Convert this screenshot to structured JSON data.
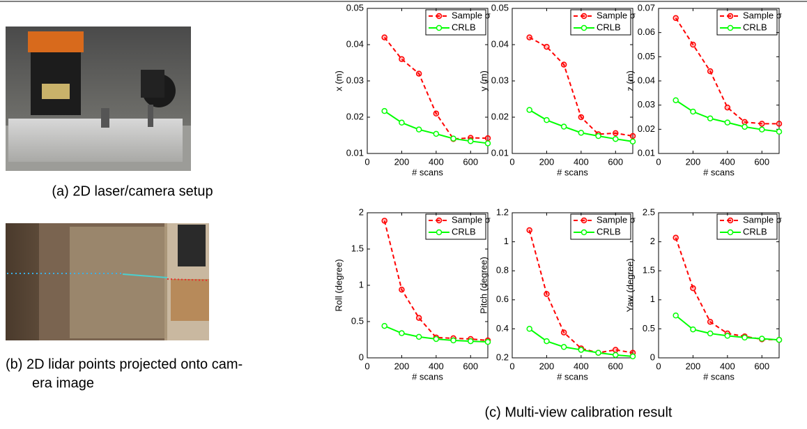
{
  "captions": {
    "a": "(a)  2D laser/camera setup",
    "b": [
      "(b)  2D lidar points projected onto cam-",
      "era image"
    ],
    "c": "(c)  Multi-view calibration result"
  },
  "chart_data": [
    {
      "type": "line",
      "ylabel": "x (m)",
      "xlabel": "# scans",
      "x": [
        100,
        200,
        300,
        400,
        500,
        600,
        700
      ],
      "xlim": [
        0,
        700
      ],
      "xticks": [
        0,
        200,
        400,
        600
      ],
      "ylim": [
        0.01,
        0.05
      ],
      "yticks": [
        0.01,
        0.02,
        0.03,
        0.04,
        0.05
      ],
      "series": [
        {
          "name": "Sample σ",
          "color": "#ff0000",
          "dashed": true,
          "values": [
            0.042,
            0.036,
            0.032,
            0.021,
            0.014,
            0.0143,
            0.0142
          ]
        },
        {
          "name": "CRLB",
          "color": "#00ff00",
          "dashed": false,
          "values": [
            0.0217,
            0.0185,
            0.0166,
            0.0154,
            0.0141,
            0.0134,
            0.0128
          ]
        }
      ]
    },
    {
      "type": "line",
      "ylabel": "y (m)",
      "xlabel": "# scans",
      "x": [
        100,
        200,
        300,
        400,
        500,
        600,
        700
      ],
      "xlim": [
        0,
        700
      ],
      "xticks": [
        0,
        200,
        400,
        600
      ],
      "ylim": [
        0.01,
        0.05
      ],
      "yticks": [
        0.01,
        0.02,
        0.03,
        0.04,
        0.05
      ],
      "series": [
        {
          "name": "Sample σ",
          "color": "#ff0000",
          "dashed": true,
          "values": [
            0.042,
            0.0394,
            0.0345,
            0.02,
            0.0153,
            0.0156,
            0.0148
          ]
        },
        {
          "name": "CRLB",
          "color": "#00ff00",
          "dashed": false,
          "values": [
            0.022,
            0.0192,
            0.0174,
            0.0157,
            0.0148,
            0.014,
            0.0133
          ]
        }
      ]
    },
    {
      "type": "line",
      "ylabel": "z (m)",
      "xlabel": "# scans",
      "x": [
        100,
        200,
        300,
        400,
        500,
        600,
        700
      ],
      "xlim": [
        0,
        700
      ],
      "xticks": [
        0,
        200,
        400,
        600
      ],
      "ylim": [
        0.01,
        0.07
      ],
      "yticks": [
        0.01,
        0.02,
        0.03,
        0.04,
        0.05,
        0.06,
        0.07
      ],
      "series": [
        {
          "name": "Sample σ",
          "color": "#ff0000",
          "dashed": true,
          "values": [
            0.066,
            0.055,
            0.044,
            0.029,
            0.023,
            0.0223,
            0.0223
          ]
        },
        {
          "name": "CRLB",
          "color": "#00ff00",
          "dashed": false,
          "values": [
            0.032,
            0.0273,
            0.0245,
            0.0228,
            0.021,
            0.0199,
            0.019
          ]
        }
      ]
    },
    {
      "type": "line",
      "ylabel": "Roll (degree)",
      "xlabel": "# scans",
      "x": [
        100,
        200,
        300,
        400,
        500,
        600,
        700
      ],
      "xlim": [
        0,
        700
      ],
      "xticks": [
        0,
        200,
        400,
        600
      ],
      "ylim": [
        0,
        2
      ],
      "yticks": [
        0,
        0.5,
        1,
        1.5,
        2
      ],
      "series": [
        {
          "name": "Sample σ",
          "color": "#ff0000",
          "dashed": true,
          "values": [
            1.89,
            0.94,
            0.55,
            0.28,
            0.27,
            0.26,
            0.24
          ]
        },
        {
          "name": "CRLB",
          "color": "#00ff00",
          "dashed": false,
          "values": [
            0.44,
            0.34,
            0.29,
            0.26,
            0.24,
            0.23,
            0.22
          ]
        }
      ]
    },
    {
      "type": "line",
      "ylabel": "Pitch (degree)",
      "xlabel": "# scans",
      "x": [
        100,
        200,
        300,
        400,
        500,
        600,
        700
      ],
      "xlim": [
        0,
        700
      ],
      "xticks": [
        0,
        200,
        400,
        600
      ],
      "ylim": [
        0.2,
        1.2
      ],
      "yticks": [
        0.2,
        0.4,
        0.6,
        0.8,
        1,
        1.2
      ],
      "series": [
        {
          "name": "Sample σ",
          "color": "#ff0000",
          "dashed": true,
          "values": [
            1.08,
            0.64,
            0.375,
            0.265,
            0.235,
            0.255,
            0.235
          ]
        },
        {
          "name": "CRLB",
          "color": "#00ff00",
          "dashed": false,
          "values": [
            0.4,
            0.315,
            0.275,
            0.255,
            0.235,
            0.22,
            0.21
          ]
        }
      ]
    },
    {
      "type": "line",
      "ylabel": "Yaw (degree)",
      "xlabel": "# scans",
      "x": [
        100,
        200,
        300,
        400,
        500,
        600,
        700
      ],
      "xlim": [
        0,
        700
      ],
      "xticks": [
        0,
        200,
        400,
        600
      ],
      "ylim": [
        0,
        2.5
      ],
      "yticks": [
        0,
        0.5,
        1,
        1.5,
        2,
        2.5
      ],
      "series": [
        {
          "name": "Sample σ",
          "color": "#ff0000",
          "dashed": true,
          "values": [
            2.07,
            1.2,
            0.62,
            0.42,
            0.37,
            0.32,
            0.31
          ]
        },
        {
          "name": "CRLB",
          "color": "#00ff00",
          "dashed": false,
          "values": [
            0.73,
            0.49,
            0.42,
            0.38,
            0.35,
            0.33,
            0.31
          ]
        }
      ]
    }
  ]
}
